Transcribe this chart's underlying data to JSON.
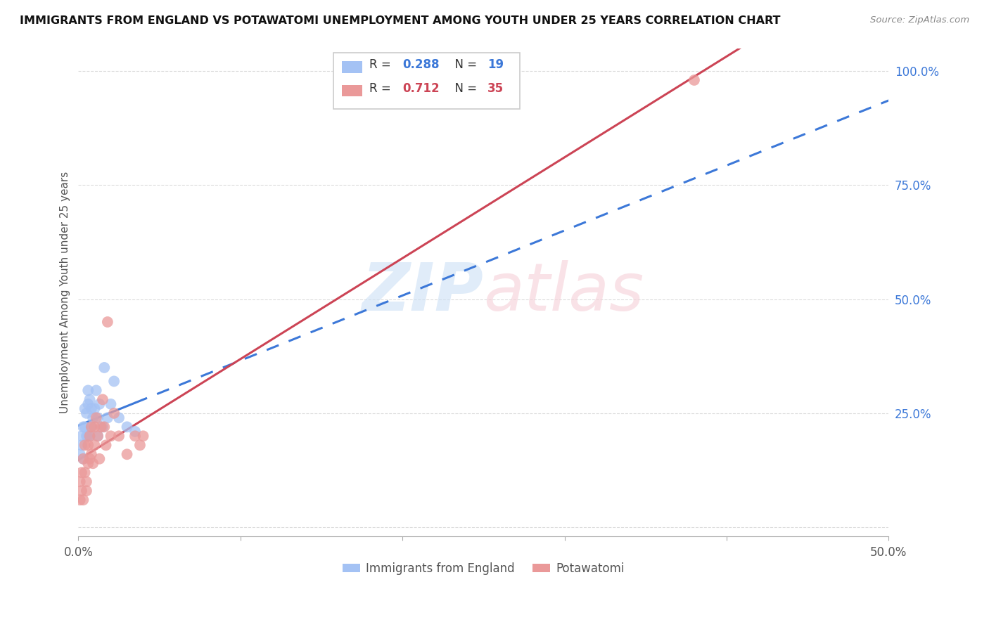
{
  "title": "IMMIGRANTS FROM ENGLAND VS POTAWATOMI UNEMPLOYMENT AMONG YOUTH UNDER 25 YEARS CORRELATION CHART",
  "source": "Source: ZipAtlas.com",
  "ylabel": "Unemployment Among Youth under 25 years",
  "xlim": [
    0.0,
    0.5
  ],
  "ylim": [
    -0.02,
    1.05
  ],
  "ytick_values": [
    0.0,
    0.25,
    0.5,
    0.75,
    1.0
  ],
  "ytick_labels": [
    "",
    "25.0%",
    "50.0%",
    "75.0%",
    "100.0%"
  ],
  "xtick_pos": [
    0.0,
    0.1,
    0.2,
    0.3,
    0.4,
    0.5
  ],
  "xtick_labels": [
    "0.0%",
    "",
    "",
    "",
    "",
    "50.0%"
  ],
  "color_england": "#a4c2f4",
  "color_potawatomi": "#ea9999",
  "color_england_line": "#3c78d8",
  "color_potawatomi_line": "#cc4455",
  "england_x": [
    0.001,
    0.002,
    0.002,
    0.003,
    0.003,
    0.004,
    0.004,
    0.005,
    0.005,
    0.006,
    0.006,
    0.007,
    0.007,
    0.008,
    0.009,
    0.01,
    0.011,
    0.012,
    0.013,
    0.015,
    0.016,
    0.018,
    0.02,
    0.022,
    0.025,
    0.03,
    0.035,
    0.012,
    0.008,
    0.006
  ],
  "england_y": [
    0.16,
    0.18,
    0.2,
    0.22,
    0.15,
    0.22,
    0.26,
    0.2,
    0.25,
    0.27,
    0.3,
    0.28,
    0.2,
    0.22,
    0.24,
    0.26,
    0.3,
    0.24,
    0.27,
    0.22,
    0.35,
    0.24,
    0.27,
    0.32,
    0.24,
    0.22,
    0.21,
    0.2,
    0.26,
    0.2
  ],
  "potawatomi_x": [
    0.001,
    0.001,
    0.002,
    0.002,
    0.003,
    0.003,
    0.004,
    0.004,
    0.005,
    0.005,
    0.006,
    0.006,
    0.007,
    0.007,
    0.008,
    0.008,
    0.009,
    0.01,
    0.01,
    0.011,
    0.012,
    0.013,
    0.014,
    0.015,
    0.016,
    0.017,
    0.018,
    0.02,
    0.022,
    0.025,
    0.03,
    0.035,
    0.038,
    0.04,
    0.38
  ],
  "potawatomi_y": [
    0.1,
    0.06,
    0.12,
    0.08,
    0.15,
    0.06,
    0.18,
    0.12,
    0.1,
    0.08,
    0.14,
    0.18,
    0.2,
    0.15,
    0.22,
    0.16,
    0.14,
    0.18,
    0.22,
    0.24,
    0.2,
    0.15,
    0.22,
    0.28,
    0.22,
    0.18,
    0.45,
    0.2,
    0.25,
    0.2,
    0.16,
    0.2,
    0.18,
    0.2,
    0.98
  ],
  "background_color": "#ffffff",
  "grid_color": "#cccccc"
}
